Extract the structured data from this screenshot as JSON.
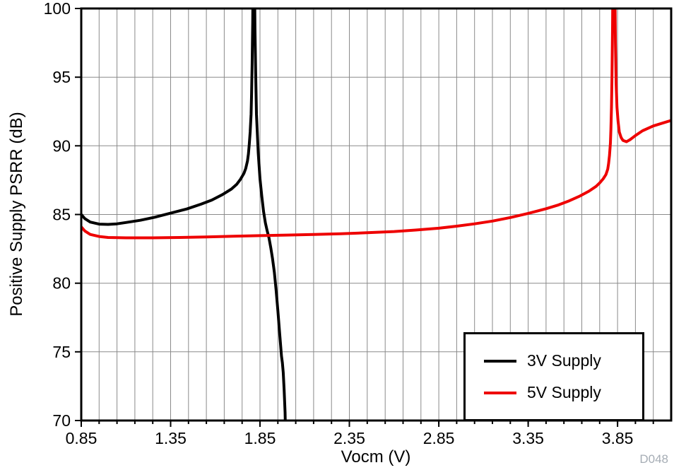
{
  "chart_data": {
    "type": "line",
    "title": "",
    "xlabel": "Vocm (V)",
    "ylabel": "Positive Supply PSRR (dB)",
    "xlim": [
      0.85,
      4.15
    ],
    "ylim": [
      70,
      100
    ],
    "xticks": [
      0.85,
      1.35,
      1.85,
      2.35,
      2.85,
      3.35,
      3.85
    ],
    "xtick_labels": [
      "0.85",
      "1.35",
      "1.85",
      "2.35",
      "2.85",
      "3.35",
      "3.85"
    ],
    "yticks": [
      70,
      75,
      80,
      85,
      90,
      95,
      100
    ],
    "ytick_labels": [
      "70",
      "75",
      "80",
      "85",
      "90",
      "95",
      "100"
    ],
    "minor_x_step": 0.1,
    "grid": true,
    "legend_position": "bottom-right",
    "watermark": "D048",
    "colors": {
      "grid": "#8a8a8a",
      "axis": "#000000",
      "watermark": "#a6adb5"
    },
    "series": [
      {
        "name": "3V Supply",
        "color": "#000000",
        "points": [
          [
            0.85,
            85.0
          ],
          [
            0.87,
            84.7
          ],
          [
            0.9,
            84.45
          ],
          [
            0.95,
            84.3
          ],
          [
            1.0,
            84.28
          ],
          [
            1.05,
            84.32
          ],
          [
            1.1,
            84.42
          ],
          [
            1.18,
            84.58
          ],
          [
            1.26,
            84.8
          ],
          [
            1.35,
            85.1
          ],
          [
            1.44,
            85.4
          ],
          [
            1.52,
            85.75
          ],
          [
            1.58,
            86.05
          ],
          [
            1.64,
            86.45
          ],
          [
            1.69,
            86.85
          ],
          [
            1.72,
            87.2
          ],
          [
            1.74,
            87.55
          ],
          [
            1.76,
            88.0
          ],
          [
            1.77,
            88.35
          ],
          [
            1.78,
            88.9
          ],
          [
            1.785,
            89.4
          ],
          [
            1.79,
            90.1
          ],
          [
            1.795,
            91.0
          ],
          [
            1.8,
            92.3
          ],
          [
            1.803,
            93.8
          ],
          [
            1.806,
            96.0
          ],
          [
            1.809,
            99.0
          ],
          [
            1.812,
            104.0
          ],
          [
            1.818,
            104.0
          ],
          [
            1.822,
            98.5
          ],
          [
            1.826,
            95.0
          ],
          [
            1.83,
            92.3
          ],
          [
            1.84,
            89.5
          ],
          [
            1.85,
            87.6
          ],
          [
            1.86,
            86.3
          ],
          [
            1.87,
            85.2
          ],
          [
            1.88,
            84.4
          ],
          [
            1.89,
            83.8
          ],
          [
            1.9,
            83.3
          ],
          [
            1.91,
            82.6
          ],
          [
            1.92,
            81.8
          ],
          [
            1.93,
            80.8
          ],
          [
            1.94,
            79.5
          ],
          [
            1.95,
            78.0
          ],
          [
            1.96,
            76.3
          ],
          [
            1.97,
            74.7
          ],
          [
            1.975,
            74.2
          ],
          [
            1.98,
            73.5
          ],
          [
            1.985,
            72.2
          ],
          [
            1.99,
            70.6
          ],
          [
            1.993,
            69.0
          ]
        ]
      },
      {
        "name": "5V Supply",
        "color": "#ee0000",
        "points": [
          [
            0.85,
            84.1
          ],
          [
            0.87,
            83.8
          ],
          [
            0.9,
            83.55
          ],
          [
            0.95,
            83.4
          ],
          [
            1.0,
            83.33
          ],
          [
            1.1,
            83.3
          ],
          [
            1.25,
            83.3
          ],
          [
            1.4,
            83.33
          ],
          [
            1.55,
            83.37
          ],
          [
            1.7,
            83.42
          ],
          [
            1.85,
            83.46
          ],
          [
            2.0,
            83.5
          ],
          [
            2.15,
            83.55
          ],
          [
            2.3,
            83.6
          ],
          [
            2.45,
            83.67
          ],
          [
            2.6,
            83.76
          ],
          [
            2.72,
            83.87
          ],
          [
            2.85,
            84.0
          ],
          [
            2.95,
            84.15
          ],
          [
            3.05,
            84.32
          ],
          [
            3.15,
            84.52
          ],
          [
            3.25,
            84.78
          ],
          [
            3.35,
            85.08
          ],
          [
            3.45,
            85.42
          ],
          [
            3.52,
            85.7
          ],
          [
            3.58,
            86.0
          ],
          [
            3.64,
            86.35
          ],
          [
            3.69,
            86.7
          ],
          [
            3.73,
            87.05
          ],
          [
            3.75,
            87.3
          ],
          [
            3.77,
            87.6
          ],
          [
            3.785,
            87.9
          ],
          [
            3.795,
            88.3
          ],
          [
            3.8,
            88.7
          ],
          [
            3.805,
            89.3
          ],
          [
            3.81,
            90.2
          ],
          [
            3.813,
            91.2
          ],
          [
            3.816,
            92.8
          ],
          [
            3.819,
            95.0
          ],
          [
            3.822,
            98.5
          ],
          [
            3.825,
            104.0
          ],
          [
            3.833,
            104.0
          ],
          [
            3.838,
            97.5
          ],
          [
            3.842,
            94.5
          ],
          [
            3.847,
            92.8
          ],
          [
            3.853,
            91.8
          ],
          [
            3.86,
            91.0
          ],
          [
            3.87,
            90.6
          ],
          [
            3.88,
            90.4
          ],
          [
            3.9,
            90.3
          ],
          [
            3.92,
            90.45
          ],
          [
            3.95,
            90.75
          ],
          [
            3.99,
            91.1
          ],
          [
            4.05,
            91.45
          ],
          [
            4.1,
            91.65
          ],
          [
            4.15,
            91.85
          ]
        ]
      }
    ]
  }
}
